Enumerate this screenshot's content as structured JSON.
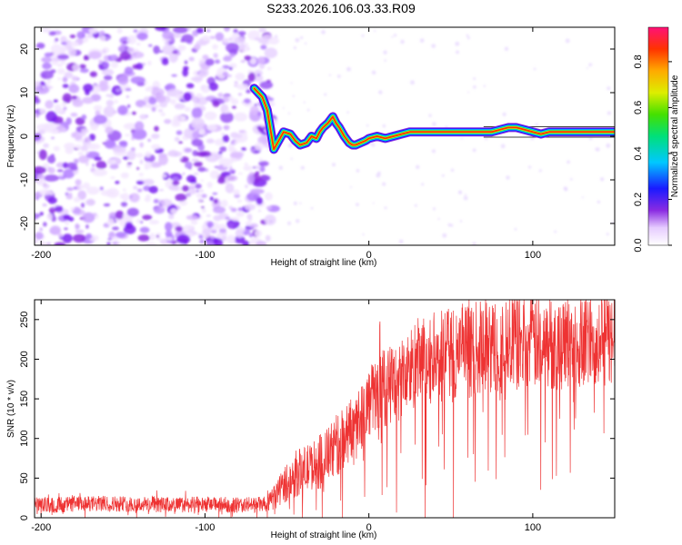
{
  "page": {
    "title": "S233.2026.106.03.33.R09"
  },
  "chart_data": [
    {
      "type": "heatmap",
      "xlabel": "Height of straight line (km)",
      "ylabel": "Frequency (Hz)",
      "xlim": [
        -204,
        150
      ],
      "ylim": [
        -25,
        25
      ],
      "xticks": [
        -200,
        -100,
        0,
        100
      ],
      "yticks": [
        -20,
        -10,
        0,
        10,
        20
      ],
      "colorbar": {
        "label": "Normalized spectral amplitude",
        "range": [
          0,
          0.95
        ],
        "ticks": [
          0.0,
          0.2,
          0.4,
          0.6,
          0.8
        ]
      },
      "noise_region": {
        "x": [
          -204,
          -62
        ],
        "y": [
          -25,
          25
        ]
      },
      "ridge": {
        "x": [
          -70,
          -65,
          -62,
          -58,
          -55,
          -52,
          -48,
          -45,
          -42,
          -38,
          -35,
          -32,
          -30,
          -28,
          -25,
          -22,
          -20,
          -18,
          -15,
          -12,
          -10,
          -8,
          -5,
          -2,
          0,
          5,
          10,
          15,
          20,
          25,
          30,
          40,
          50,
          60,
          70,
          75,
          80,
          85,
          90,
          95,
          100,
          105,
          110,
          120,
          130,
          140,
          150
        ],
        "y": [
          11,
          9,
          6,
          -3,
          -1,
          1,
          0.5,
          -1,
          -2,
          -1.5,
          0,
          -0.5,
          1,
          2,
          3,
          4.5,
          3,
          2,
          0,
          -1.5,
          -2,
          -2,
          -1.5,
          -1,
          -0.5,
          0,
          -0.5,
          0,
          0.5,
          1,
          1,
          1,
          1,
          1,
          1,
          1,
          1.5,
          2,
          2,
          1.5,
          1,
          0.5,
          1,
          1,
          1,
          1,
          1
        ]
      }
    },
    {
      "type": "line",
      "xlabel": "Height of straight line (km)",
      "ylabel": "SNR (10 * v/v)",
      "xlim": [
        -204,
        150
      ],
      "ylim": [
        0,
        275
      ],
      "xticks": [
        -200,
        -100,
        0,
        100
      ],
      "yticks": [
        0,
        50,
        100,
        150,
        200,
        250
      ],
      "color": "#ee3333",
      "series": [
        {
          "x": [
            -204,
            -180,
            -160,
            -140,
            -120,
            -100,
            -80,
            -62,
            -58,
            -55,
            -50,
            -45,
            -40,
            -35,
            -30,
            -25,
            -20,
            -15,
            -10,
            -5,
            0,
            5,
            10,
            15,
            20,
            25,
            30,
            40,
            50,
            60,
            70,
            80,
            90,
            100,
            110,
            120,
            130,
            140,
            150
          ],
          "y": [
            16,
            17,
            18,
            17,
            16,
            17,
            16,
            17,
            25,
            35,
            45,
            55,
            60,
            65,
            70,
            80,
            90,
            100,
            115,
            130,
            145,
            155,
            165,
            170,
            175,
            185,
            195,
            200,
            205,
            210,
            215,
            215,
            220,
            220,
            220,
            220,
            225,
            225,
            225
          ],
          "spread": [
            10,
            10,
            10,
            10,
            10,
            10,
            10,
            10,
            15,
            20,
            25,
            30,
            30,
            30,
            35,
            35,
            40,
            40,
            40,
            45,
            45,
            50,
            50,
            50,
            55,
            55,
            60,
            60,
            60,
            60,
            60,
            60,
            60,
            60,
            60,
            60,
            60,
            60,
            60
          ]
        }
      ]
    }
  ]
}
